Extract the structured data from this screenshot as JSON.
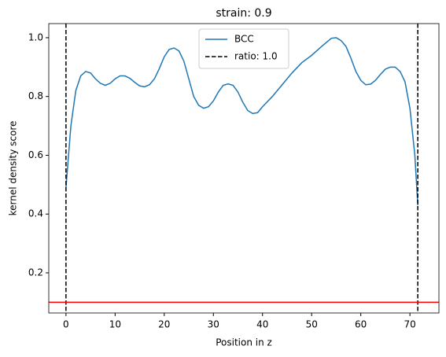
{
  "chart_data": {
    "type": "line",
    "title": "strain: 0.9",
    "xlabel": "Position in z",
    "ylabel": "kernel density score",
    "x": [
      0,
      1,
      2,
      3,
      4,
      5,
      6,
      7,
      8,
      9,
      10,
      11,
      12,
      13,
      14,
      15,
      16,
      17,
      18,
      19,
      20,
      21,
      22,
      23,
      24,
      25,
      26,
      27,
      28,
      29,
      30,
      31,
      32,
      33,
      34,
      35,
      36,
      37,
      38,
      39,
      40,
      42,
      44,
      46,
      48,
      50,
      52,
      54,
      55,
      56,
      57,
      58,
      59,
      60,
      61,
      62,
      63,
      64,
      65,
      66,
      67,
      68,
      69,
      70,
      71,
      71.6
    ],
    "series": [
      {
        "name": "BCC",
        "color": "#1f77b4",
        "values": [
          0.49,
          0.7,
          0.82,
          0.87,
          0.885,
          0.88,
          0.86,
          0.845,
          0.838,
          0.845,
          0.86,
          0.87,
          0.87,
          0.862,
          0.848,
          0.836,
          0.833,
          0.84,
          0.86,
          0.895,
          0.935,
          0.96,
          0.965,
          0.955,
          0.92,
          0.86,
          0.8,
          0.77,
          0.76,
          0.765,
          0.785,
          0.815,
          0.838,
          0.843,
          0.838,
          0.815,
          0.78,
          0.752,
          0.742,
          0.745,
          0.765,
          0.8,
          0.84,
          0.88,
          0.915,
          0.94,
          0.97,
          0.998,
          1.0,
          0.99,
          0.97,
          0.93,
          0.885,
          0.855,
          0.84,
          0.842,
          0.855,
          0.875,
          0.893,
          0.9,
          0.9,
          0.885,
          0.85,
          0.76,
          0.6,
          0.43
        ]
      }
    ],
    "vlines": {
      "name": "ratio: 1.0",
      "color": "#000000",
      "x": [
        0,
        71.6
      ]
    },
    "hline": {
      "color": "#ff0000",
      "y": 0.1
    },
    "xlim": [
      -3.5,
      75.9
    ],
    "xticks": [
      0,
      10,
      20,
      30,
      40,
      50,
      60,
      70
    ],
    "ylim": [
      0.0635,
      1.048
    ],
    "yticks": [
      0.2,
      0.4,
      0.6,
      0.8,
      {
        "value": 1.0,
        "label": "1.0"
      }
    ],
    "legend": "upper center"
  }
}
